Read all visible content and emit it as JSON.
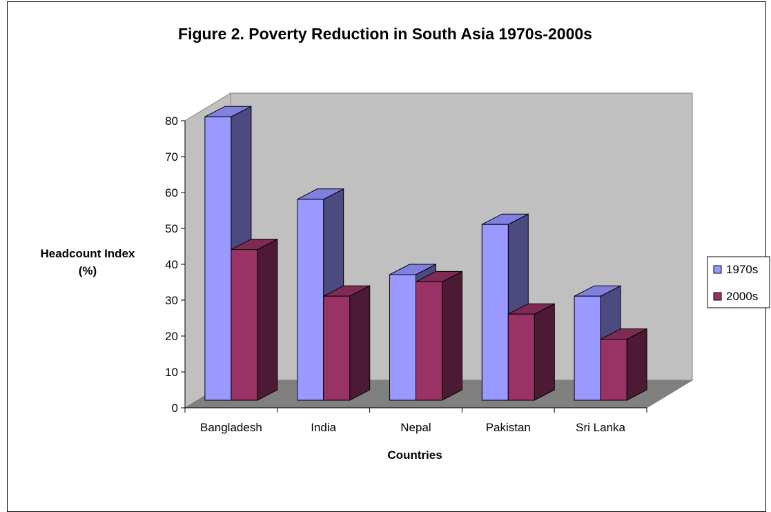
{
  "chart_data": {
    "type": "bar",
    "title": "Figure 2. Poverty Reduction in South Asia 1970s-2000s",
    "xlabel": "Countries",
    "ylabel_lines": [
      "Headcount Index",
      "(%)"
    ],
    "categories": [
      "Bangladesh",
      "India",
      "Nepal",
      "Pakistan",
      "Sri Lanka"
    ],
    "series": [
      {
        "name": "1970s",
        "values": [
          79,
          56,
          35,
          49,
          29
        ],
        "color": "#9999ff",
        "side": "#4b4b82",
        "top": "#8080e0"
      },
      {
        "name": "2000s",
        "values": [
          42,
          29,
          33,
          24,
          17
        ],
        "color": "#993366",
        "side": "#4d1a36",
        "top": "#7f2a55"
      }
    ],
    "ylim": [
      0,
      80
    ],
    "yticks": [
      "0",
      "10",
      "20",
      "30",
      "40",
      "50",
      "60",
      "70",
      "80"
    ],
    "grid": false,
    "legend": "right",
    "wall_color": "#c0c0c0",
    "floor_color": "#808080"
  }
}
